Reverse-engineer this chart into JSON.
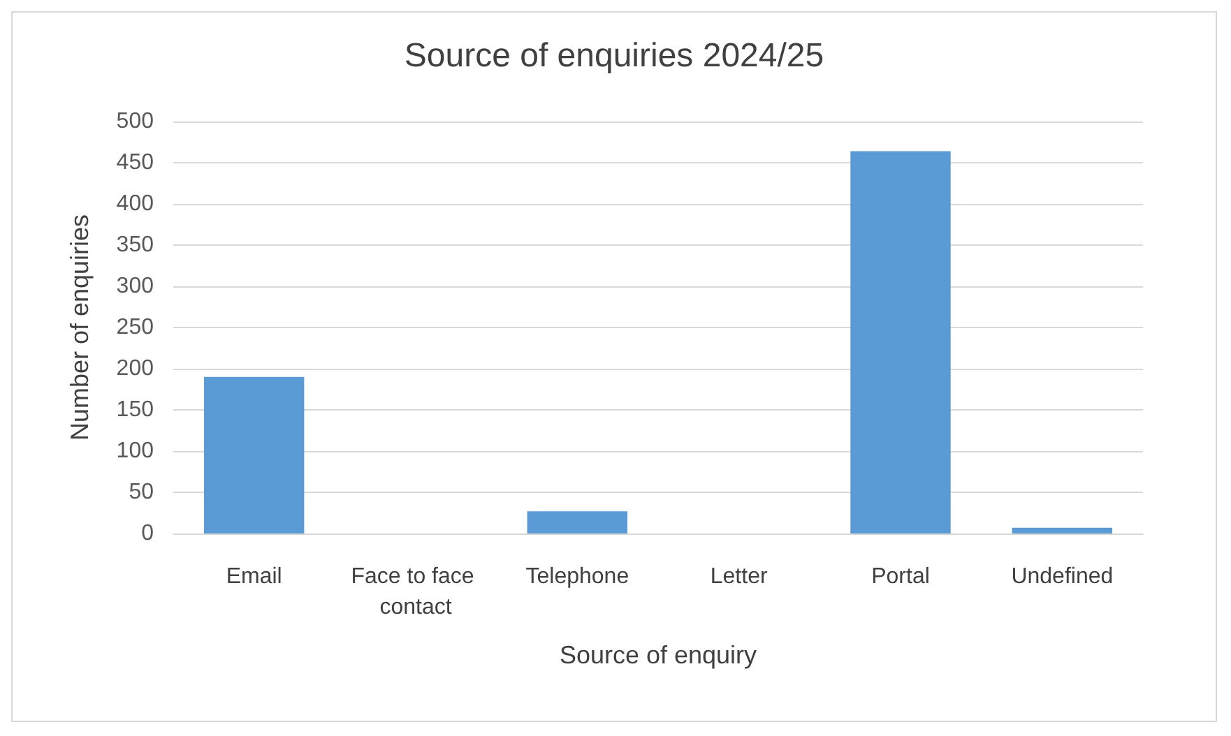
{
  "chart_data": {
    "type": "bar",
    "title": "Source of enquiries 2024/25",
    "xlabel": "Source of enquiry",
    "ylabel": "Number of enquiries",
    "categories": [
      "Email",
      "Face to face contact",
      "Telephone",
      "Letter",
      "Portal",
      "Undefined"
    ],
    "values": [
      190,
      0,
      27,
      0,
      464,
      7
    ],
    "color": "#5b9bd5",
    "ylim": [
      0,
      500
    ],
    "yticks": [
      0,
      50,
      100,
      150,
      200,
      250,
      300,
      350,
      400,
      450,
      500
    ],
    "grid": "y"
  }
}
